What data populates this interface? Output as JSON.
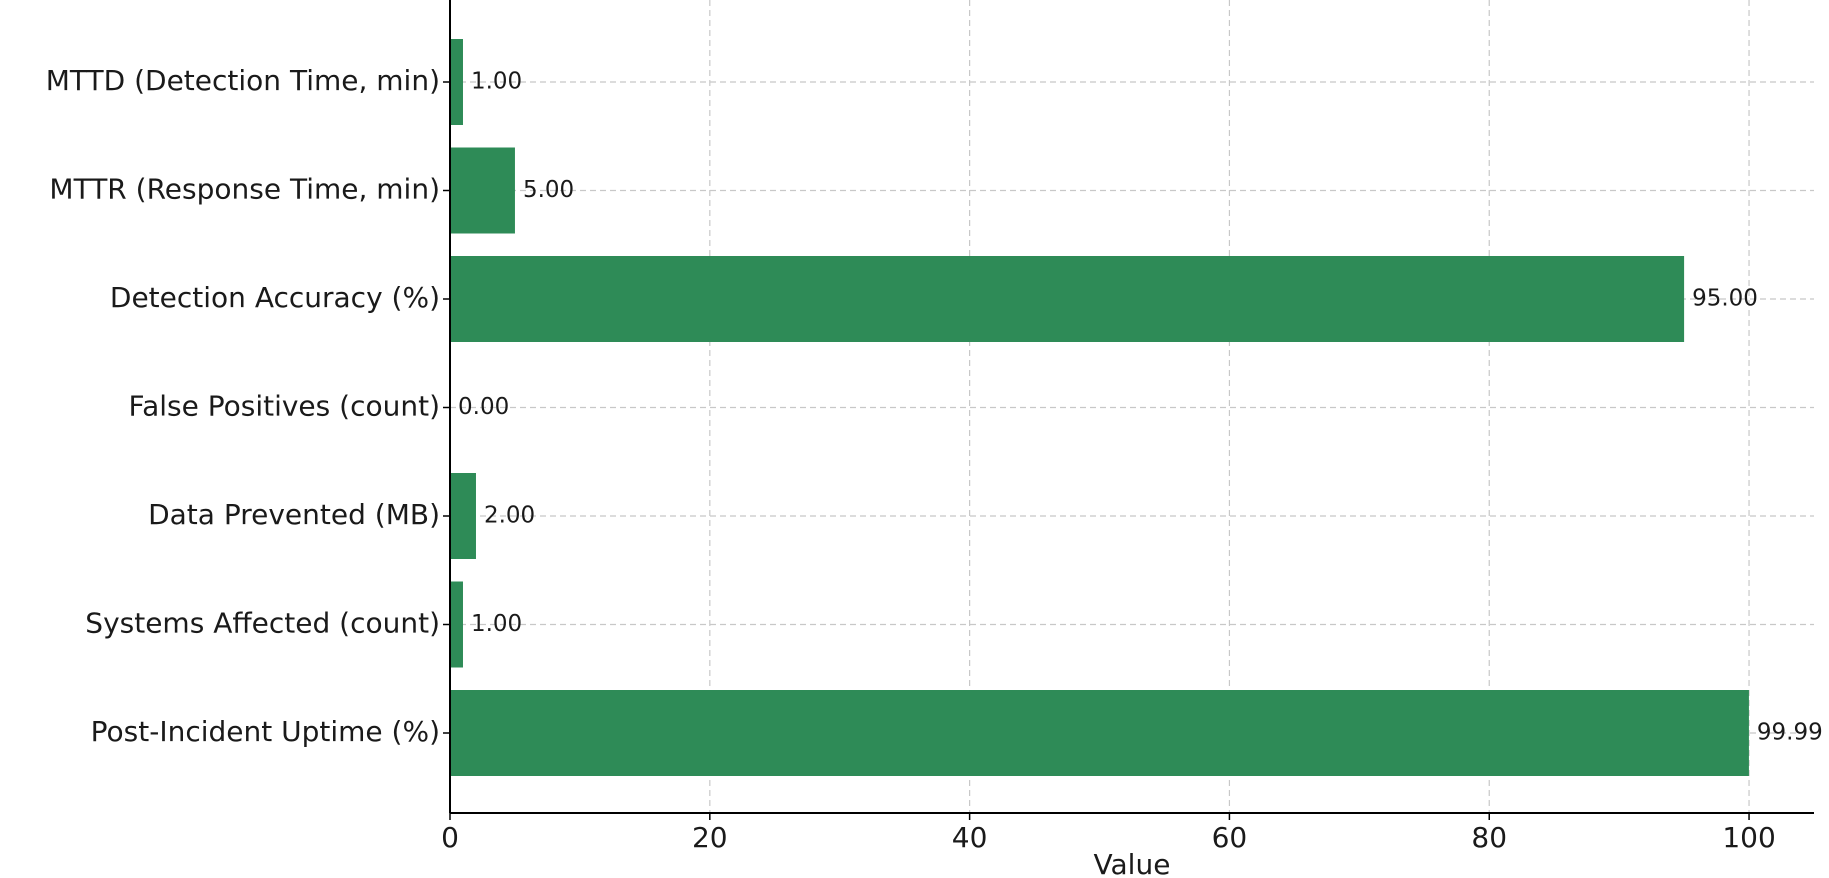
{
  "chart_data": {
    "type": "barh",
    "categories": [
      "MTTD (Detection Time, min)",
      "MTTR (Response Time, min)",
      "Detection Accuracy (%)",
      "False Positives (count)",
      "Data Prevented (MB)",
      "Systems Affected (count)",
      "Post-Incident Uptime (%)"
    ],
    "values": [
      1,
      5,
      95,
      0,
      2,
      1,
      99.99
    ],
    "value_labels": [
      "1.00",
      "5.00",
      "95.00",
      "0.00",
      "2.00",
      "1.00",
      "99.99"
    ],
    "color": "#2e8b57",
    "xlabel": "Value",
    "xlim": [
      0,
      105
    ],
    "xticks": [
      0,
      20,
      40,
      60,
      80,
      100
    ],
    "grid": true
  }
}
